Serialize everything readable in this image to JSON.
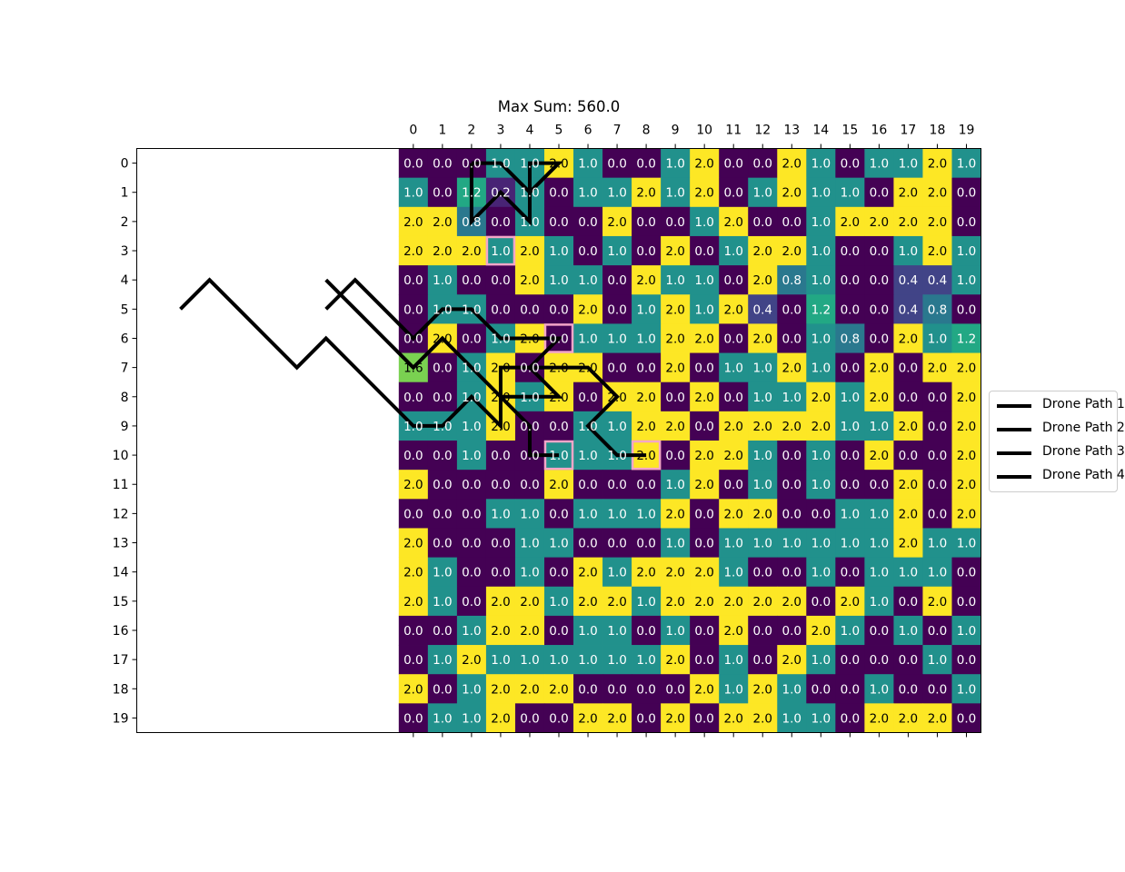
{
  "chart_data": {
    "type": "heatmap",
    "title": "Max Sum: 560.0",
    "x_ticks": [
      0,
      1,
      2,
      3,
      4,
      5,
      6,
      7,
      8,
      9,
      10,
      11,
      12,
      13,
      14,
      15,
      16,
      17,
      18,
      19
    ],
    "y_ticks": [
      0,
      1,
      2,
      3,
      4,
      5,
      6,
      7,
      8,
      9,
      10,
      11,
      12,
      13,
      14,
      15,
      16,
      17,
      18,
      19
    ],
    "xlim": [
      -9.5,
      19.5
    ],
    "ylim": [
      19.5,
      -0.5
    ],
    "colormap": "viridis",
    "color_range": [
      0,
      2
    ],
    "grid": [
      [
        0.0,
        0.0,
        0.0,
        1.0,
        1.0,
        2.0,
        1.0,
        0.0,
        0.0,
        1.0,
        2.0,
        0.0,
        0.0,
        2.0,
        1.0,
        0.0,
        1.0,
        1.0,
        2.0,
        1.0
      ],
      [
        1.0,
        0.0,
        1.2,
        0.2,
        1.0,
        0.0,
        1.0,
        1.0,
        2.0,
        1.0,
        2.0,
        0.0,
        1.0,
        2.0,
        1.0,
        1.0,
        0.0,
        2.0,
        2.0,
        0.0
      ],
      [
        2.0,
        2.0,
        0.8,
        0.0,
        1.0,
        0.0,
        0.0,
        2.0,
        0.0,
        0.0,
        1.0,
        2.0,
        0.0,
        0.0,
        1.0,
        2.0,
        2.0,
        2.0,
        2.0,
        0.0
      ],
      [
        2.0,
        2.0,
        2.0,
        1.0,
        2.0,
        1.0,
        0.0,
        1.0,
        0.0,
        2.0,
        0.0,
        1.0,
        2.0,
        2.0,
        1.0,
        0.0,
        0.0,
        1.0,
        2.0,
        1.0
      ],
      [
        0.0,
        1.0,
        0.0,
        0.0,
        2.0,
        1.0,
        1.0,
        0.0,
        2.0,
        1.0,
        1.0,
        0.0,
        2.0,
        0.8,
        1.0,
        0.0,
        0.0,
        0.4,
        0.4,
        1.0
      ],
      [
        0.0,
        1.0,
        1.0,
        0.0,
        0.0,
        0.0,
        2.0,
        0.0,
        1.0,
        2.0,
        1.0,
        2.0,
        0.4,
        0.0,
        1.2,
        0.0,
        0.0,
        0.4,
        0.8,
        0.0
      ],
      [
        0.0,
        2.0,
        0.0,
        1.0,
        2.0,
        0.0,
        1.0,
        1.0,
        1.0,
        2.0,
        2.0,
        0.0,
        2.0,
        0.0,
        1.0,
        0.8,
        0.0,
        2.0,
        1.0,
        1.2
      ],
      [
        1.6,
        0.0,
        1.0,
        2.0,
        0.0,
        2.0,
        2.0,
        0.0,
        0.0,
        2.0,
        0.0,
        1.0,
        1.0,
        2.0,
        1.0,
        0.0,
        2.0,
        0.0,
        2.0,
        2.0
      ],
      [
        0.0,
        0.0,
        1.0,
        2.0,
        1.0,
        2.0,
        0.0,
        2.0,
        2.0,
        0.0,
        2.0,
        0.0,
        1.0,
        1.0,
        2.0,
        1.0,
        2.0,
        0.0,
        0.0,
        2.0
      ],
      [
        1.0,
        1.0,
        1.0,
        2.0,
        0.0,
        0.0,
        1.0,
        1.0,
        2.0,
        2.0,
        0.0,
        2.0,
        2.0,
        2.0,
        2.0,
        1.0,
        1.0,
        2.0,
        0.0,
        2.0
      ],
      [
        0.0,
        0.0,
        1.0,
        0.0,
        0.0,
        1.0,
        1.0,
        1.0,
        2.0,
        0.0,
        2.0,
        2.0,
        1.0,
        0.0,
        1.0,
        0.0,
        2.0,
        0.0,
        0.0,
        2.0
      ],
      [
        2.0,
        0.0,
        0.0,
        0.0,
        0.0,
        2.0,
        0.0,
        0.0,
        0.0,
        1.0,
        2.0,
        0.0,
        1.0,
        0.0,
        1.0,
        0.0,
        0.0,
        2.0,
        0.0,
        2.0
      ],
      [
        0.0,
        0.0,
        0.0,
        1.0,
        1.0,
        0.0,
        1.0,
        1.0,
        1.0,
        2.0,
        0.0,
        2.0,
        2.0,
        0.0,
        0.0,
        1.0,
        1.0,
        2.0,
        0.0,
        2.0
      ],
      [
        2.0,
        0.0,
        0.0,
        0.0,
        1.0,
        1.0,
        0.0,
        0.0,
        0.0,
        1.0,
        0.0,
        1.0,
        1.0,
        1.0,
        1.0,
        1.0,
        1.0,
        2.0,
        1.0,
        1.0
      ],
      [
        2.0,
        1.0,
        0.0,
        0.0,
        1.0,
        0.0,
        2.0,
        1.0,
        2.0,
        2.0,
        2.0,
        1.0,
        0.0,
        0.0,
        1.0,
        0.0,
        1.0,
        1.0,
        1.0,
        0.0
      ],
      [
        2.0,
        1.0,
        0.0,
        2.0,
        2.0,
        1.0,
        2.0,
        2.0,
        1.0,
        2.0,
        2.0,
        2.0,
        2.0,
        2.0,
        0.0,
        2.0,
        1.0,
        0.0,
        2.0,
        0.0
      ],
      [
        0.0,
        0.0,
        1.0,
        2.0,
        2.0,
        0.0,
        1.0,
        1.0,
        0.0,
        1.0,
        0.0,
        2.0,
        0.0,
        0.0,
        2.0,
        1.0,
        0.0,
        1.0,
        0.0,
        1.0
      ],
      [
        0.0,
        1.0,
        2.0,
        1.0,
        1.0,
        1.0,
        1.0,
        1.0,
        1.0,
        2.0,
        0.0,
        1.0,
        0.0,
        2.0,
        1.0,
        0.0,
        0.0,
        0.0,
        1.0,
        0.0
      ],
      [
        2.0,
        0.0,
        1.0,
        2.0,
        2.0,
        2.0,
        0.0,
        0.0,
        0.0,
        0.0,
        2.0,
        1.0,
        2.0,
        1.0,
        0.0,
        0.0,
        1.0,
        0.0,
        0.0,
        1.0
      ],
      [
        0.0,
        1.0,
        1.0,
        2.0,
        0.0,
        0.0,
        2.0,
        2.0,
        0.0,
        2.0,
        0.0,
        2.0,
        2.0,
        1.0,
        1.0,
        0.0,
        2.0,
        2.0,
        2.0,
        0.0
      ]
    ],
    "highlighted_cells": [
      [
        3,
        3
      ],
      [
        6,
        5
      ],
      [
        10,
        5
      ],
      [
        10,
        8
      ]
    ],
    "highlight_color": "#f4a6c8",
    "series": [
      {
        "name": "Drone Path 1",
        "color": "#000000",
        "points": [
          [
            2,
            0
          ],
          [
            2,
            1
          ],
          [
            2,
            2
          ],
          [
            3,
            1
          ],
          [
            4,
            2
          ],
          [
            4,
            1
          ],
          [
            4,
            0
          ],
          [
            5,
            0
          ],
          [
            4,
            1
          ],
          [
            3,
            0
          ],
          [
            2,
            0
          ]
        ]
      },
      {
        "name": "Drone Path 2",
        "color": "#000000",
        "points": [
          [
            -8,
            5
          ],
          [
            -7,
            4
          ],
          [
            -6,
            5
          ],
          [
            -5,
            6
          ],
          [
            -4,
            7
          ],
          [
            -3,
            6
          ],
          [
            -2,
            7
          ],
          [
            -1,
            8
          ],
          [
            0,
            9
          ],
          [
            1,
            9
          ],
          [
            2,
            8
          ],
          [
            3,
            9
          ],
          [
            3,
            8
          ],
          [
            4,
            8
          ],
          [
            5,
            8
          ],
          [
            4,
            7
          ],
          [
            3,
            7
          ],
          [
            3,
            8
          ]
        ]
      },
      {
        "name": "Drone Path 3",
        "color": "#000000",
        "points": [
          [
            -3,
            5
          ],
          [
            -2,
            4
          ],
          [
            -1,
            5
          ],
          [
            0,
            6
          ],
          [
            1,
            5
          ],
          [
            2,
            5
          ],
          [
            3,
            6
          ],
          [
            4,
            6
          ],
          [
            5,
            6
          ],
          [
            4,
            7
          ],
          [
            5,
            7
          ],
          [
            6,
            7
          ],
          [
            7,
            8
          ],
          [
            6,
            9
          ],
          [
            7,
            10
          ],
          [
            8,
            10
          ]
        ]
      },
      {
        "name": "Drone Path 4",
        "color": "#000000",
        "points": [
          [
            -3,
            4
          ],
          [
            -2,
            5
          ],
          [
            -1,
            6
          ],
          [
            0,
            7
          ],
          [
            1,
            6
          ],
          [
            2,
            7
          ],
          [
            3,
            8
          ],
          [
            4,
            9
          ],
          [
            4,
            10
          ],
          [
            5,
            10
          ]
        ]
      }
    ],
    "legend_position": "center-right"
  }
}
